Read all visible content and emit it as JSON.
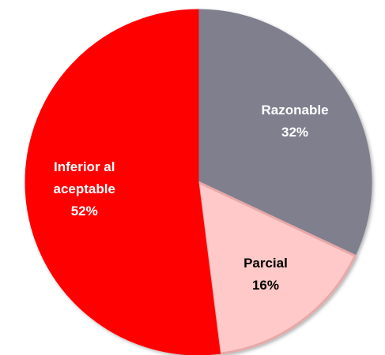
{
  "chart_data": {
    "type": "pie",
    "categories": [
      "Razonable",
      "Parcial",
      "Inferior al aceptable"
    ],
    "values": [
      32,
      16,
      52
    ],
    "value_labels": [
      "32%",
      "16%",
      "52%"
    ],
    "colors": [
      "#7f7f8e",
      "#ffc9c9",
      "#ff0000"
    ]
  }
}
